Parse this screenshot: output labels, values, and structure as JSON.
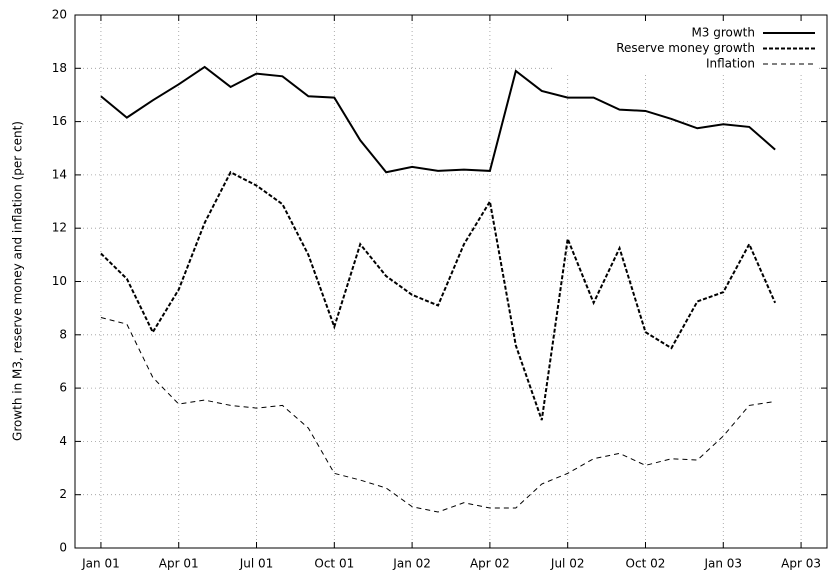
{
  "chart_data": {
    "type": "line",
    "y_label": "Growth in M3, reserve money and inflation (per cent)",
    "x": [
      "2001-01",
      "2001-02",
      "2001-03",
      "2001-04",
      "2001-05",
      "2001-06",
      "2001-07",
      "2001-08",
      "2001-09",
      "2001-10",
      "2001-11",
      "2001-12",
      "2002-01",
      "2002-02",
      "2002-03",
      "2002-04",
      "2002-05",
      "2002-06",
      "2002-07",
      "2002-08",
      "2002-09",
      "2002-10",
      "2002-11",
      "2002-12",
      "2003-01",
      "2003-02",
      "2003-03"
    ],
    "series": [
      {
        "name": "M3 growth",
        "color": "#000000",
        "style": "solid",
        "weight": "thick",
        "values": [
          16.95,
          16.15,
          16.8,
          17.4,
          18.05,
          17.3,
          17.8,
          17.7,
          16.95,
          16.9,
          15.3,
          14.1,
          14.3,
          14.15,
          14.2,
          14.15,
          17.9,
          17.15,
          16.9,
          16.9,
          16.45,
          16.4,
          16.1,
          15.75,
          15.9,
          15.8,
          14.95
        ]
      },
      {
        "name": "Reserve money growth",
        "color": "#000000",
        "style": "dashed",
        "weight": "thick",
        "values": [
          11.05,
          10.1,
          8.1,
          9.7,
          12.2,
          14.1,
          13.6,
          12.9,
          11.0,
          8.3,
          11.4,
          10.2,
          9.5,
          9.1,
          11.4,
          13.0,
          7.6,
          4.8,
          11.6,
          9.2,
          11.25,
          8.1,
          7.5,
          9.25,
          9.6,
          11.4,
          9.2
        ]
      },
      {
        "name": "Inflation",
        "color": "#000000",
        "style": "dashed",
        "weight": "thin",
        "values": [
          8.65,
          8.4,
          6.4,
          5.4,
          5.55,
          5.35,
          5.25,
          5.35,
          4.5,
          2.8,
          2.55,
          2.25,
          1.55,
          1.35,
          1.7,
          1.5,
          1.5,
          2.4,
          2.8,
          3.35,
          3.55,
          3.1,
          3.35,
          3.3,
          4.2,
          5.35,
          5.5
        ]
      }
    ],
    "xlim": [
      "2000-12",
      "2003-05"
    ],
    "xticks": [
      {
        "value": "2001-01",
        "label": "Jan 01"
      },
      {
        "value": "2001-04",
        "label": "Apr 01"
      },
      {
        "value": "2001-07",
        "label": "Jul 01"
      },
      {
        "value": "2001-10",
        "label": "Oct 01"
      },
      {
        "value": "2002-01",
        "label": "Jan 02"
      },
      {
        "value": "2002-04",
        "label": "Apr 02"
      },
      {
        "value": "2002-07",
        "label": "Jul 02"
      },
      {
        "value": "2002-10",
        "label": "Oct 02"
      },
      {
        "value": "2003-01",
        "label": "Jan 03"
      },
      {
        "value": "2003-04",
        "label": "Apr 03"
      }
    ],
    "ylim": [
      0,
      20
    ],
    "yticks": [
      0,
      2,
      4,
      6,
      8,
      10,
      12,
      14,
      16,
      18,
      20
    ],
    "grid": true,
    "legend": "top-right"
  }
}
